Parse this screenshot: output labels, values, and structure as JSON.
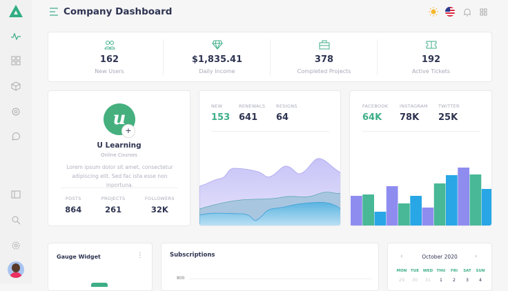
{
  "header": {
    "title": "Company Dashboard"
  },
  "stats": [
    {
      "value": "162",
      "label": "New Users",
      "icon": "users-icon"
    },
    {
      "value": "$1,835.41",
      "label": "Daily Income",
      "icon": "diamond-icon"
    },
    {
      "value": "378",
      "label": "Completed Projects",
      "icon": "briefcase-icon"
    },
    {
      "value": "192",
      "label": "Active Tickets",
      "icon": "ticket-icon"
    }
  ],
  "profile": {
    "name": "U Learning",
    "subtitle": "Online Courses",
    "description": "Lorem ipsum dolor sit amet, consectetur adipiscing elit. Sed fac ista esse non inportuna.",
    "metrics": [
      {
        "label": "POSTS",
        "value": "864"
      },
      {
        "label": "PROJECTS",
        "value": "261"
      },
      {
        "label": "FOLLOWERS",
        "value": "32K"
      }
    ]
  },
  "membership": {
    "metrics": [
      {
        "label": "NEW",
        "value": "153"
      },
      {
        "label": "RENEWALS",
        "value": "641"
      },
      {
        "label": "RESIGNS",
        "value": "64"
      }
    ]
  },
  "social": {
    "metrics": [
      {
        "label": "FACEBOOK",
        "value": "64K"
      },
      {
        "label": "INSTAGRAM",
        "value": "78K"
      },
      {
        "label": "TWITTER",
        "value": "25K"
      }
    ],
    "bars": [
      44,
      46,
      21,
      58,
      33,
      44,
      27,
      62,
      74,
      85,
      75,
      54
    ],
    "colors": [
      "#8f8cf0",
      "#48b896",
      "#28a6e6"
    ]
  },
  "gauge": {
    "title": "Gauge Widget"
  },
  "subscriptions": {
    "title": "Subscriptions",
    "ytick": "800"
  },
  "calendar": {
    "month": "October 2020",
    "days": [
      "MON",
      "TUE",
      "WED",
      "THU",
      "FRI",
      "SAT",
      "SUN"
    ],
    "dates": [
      "29",
      "30",
      "31",
      "1",
      "2",
      "3",
      "4"
    ]
  },
  "colors": {
    "accent": "#3dae87",
    "text": "#2e3451"
  }
}
